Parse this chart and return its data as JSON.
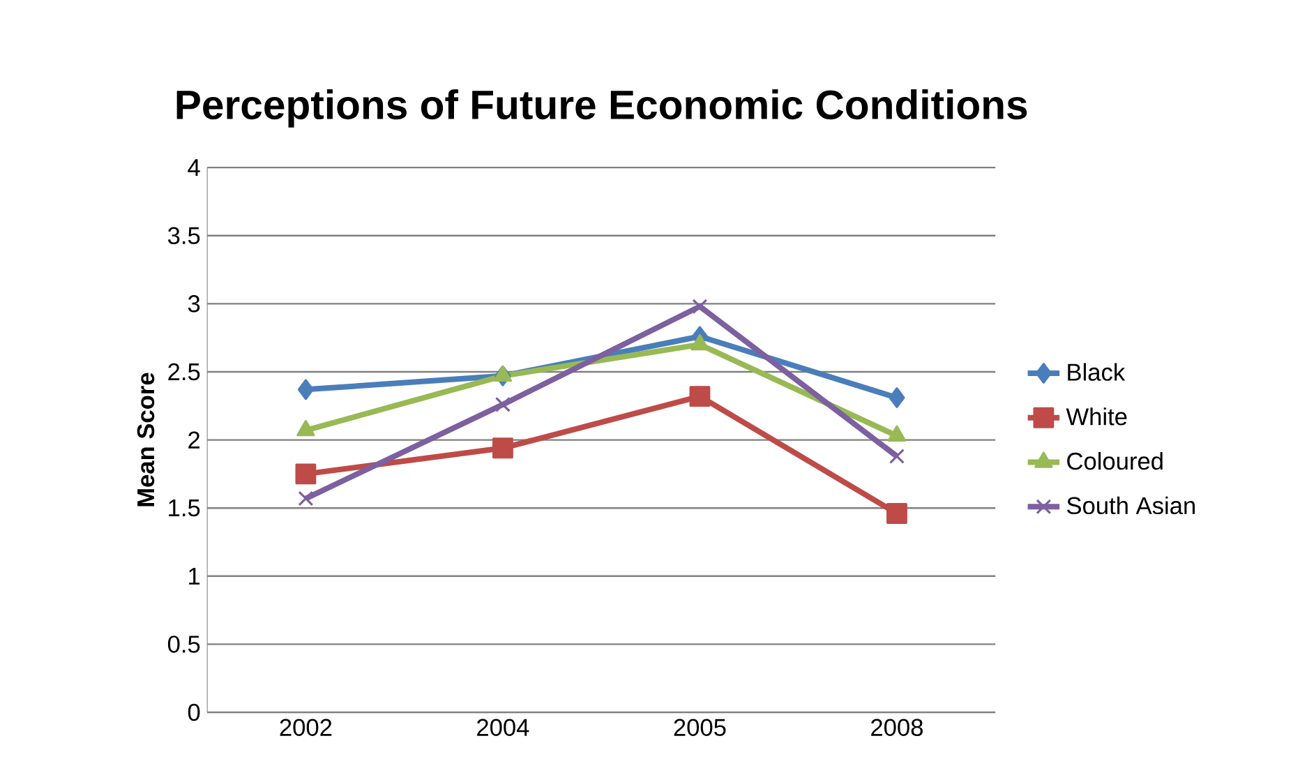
{
  "chart_data": {
    "type": "line",
    "title": "Perceptions of Future Economic Conditions",
    "ylabel": "Mean Score",
    "categories": [
      "2002",
      "2004",
      "2005",
      "2008"
    ],
    "series": [
      {
        "name": "Black",
        "color": "#4a7ebb",
        "marker": "diamond",
        "values": [
          2.37,
          2.47,
          2.76,
          2.31
        ]
      },
      {
        "name": "White",
        "color": "#be4b48",
        "marker": "square",
        "values": [
          1.75,
          1.94,
          2.32,
          1.46
        ]
      },
      {
        "name": "Coloured",
        "color": "#98b954",
        "marker": "triangle",
        "values": [
          2.07,
          2.47,
          2.7,
          2.03
        ]
      },
      {
        "name": "South Asian",
        "color": "#7d60a0",
        "marker": "cross",
        "values": [
          1.57,
          2.26,
          2.98,
          1.88
        ]
      }
    ],
    "ylim": [
      0,
      4
    ],
    "yticks": [
      0,
      0.5,
      1,
      1.5,
      2,
      2.5,
      3,
      3.5,
      4
    ],
    "grid": "y",
    "legend": "right"
  }
}
